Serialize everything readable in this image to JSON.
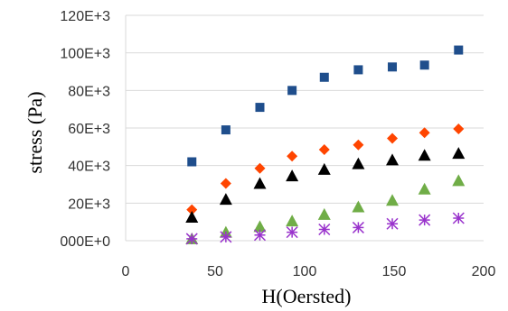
{
  "chart_data": {
    "type": "scatter",
    "xlabel": "H(Oersted)",
    "ylabel": "stress (Pa)",
    "xlim": [
      0,
      200
    ],
    "ylim": [
      0,
      120000
    ],
    "x_ticks": [
      "0",
      "50",
      "100",
      "150",
      "200"
    ],
    "y_ticks": [
      "000E+0",
      "20E+3",
      "40E+3",
      "60E+3",
      "80E+3",
      "100E+3",
      "120E+3"
    ],
    "grid": "horizontal",
    "legend": "none",
    "series": [
      {
        "marker": "square",
        "color": "#1f4e8c",
        "points": [
          [
            37,
            42000
          ],
          [
            56,
            59000
          ],
          [
            75,
            71000
          ],
          [
            93,
            80000
          ],
          [
            111,
            87000
          ],
          [
            130,
            91000
          ],
          [
            149,
            92500
          ],
          [
            167,
            93500
          ],
          [
            186,
            101500
          ]
        ]
      },
      {
        "marker": "diamond",
        "color": "#ff4500",
        "points": [
          [
            37,
            16500
          ],
          [
            56,
            30500
          ],
          [
            75,
            38500
          ],
          [
            93,
            45000
          ],
          [
            111,
            48500
          ],
          [
            130,
            51000
          ],
          [
            149,
            54500
          ],
          [
            167,
            57500
          ],
          [
            186,
            59500
          ]
        ]
      },
      {
        "marker": "triangle",
        "color": "#000000",
        "points": [
          [
            37,
            12500
          ],
          [
            56,
            22000
          ],
          [
            75,
            30500
          ],
          [
            93,
            34500
          ],
          [
            111,
            38000
          ],
          [
            130,
            41000
          ],
          [
            149,
            43000
          ],
          [
            167,
            45500
          ],
          [
            186,
            46500
          ]
        ]
      },
      {
        "marker": "triangle",
        "color": "#70ad47",
        "points": [
          [
            37,
            1000
          ],
          [
            56,
            4500
          ],
          [
            75,
            7500
          ],
          [
            93,
            10500
          ],
          [
            111,
            14000
          ],
          [
            130,
            18000
          ],
          [
            149,
            21500
          ],
          [
            167,
            27500
          ],
          [
            186,
            32000
          ]
        ]
      },
      {
        "marker": "asterisk",
        "color": "#9932cc",
        "points": [
          [
            37,
            1000
          ],
          [
            56,
            2000
          ],
          [
            75,
            3000
          ],
          [
            93,
            4500
          ],
          [
            111,
            6000
          ],
          [
            130,
            7000
          ],
          [
            149,
            9000
          ],
          [
            167,
            11000
          ],
          [
            186,
            12000
          ]
        ]
      }
    ]
  }
}
